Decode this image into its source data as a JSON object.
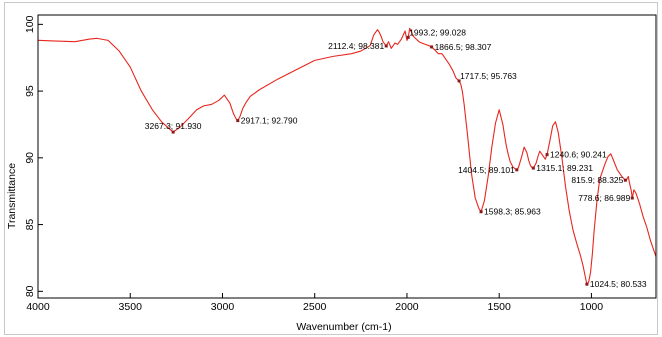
{
  "chart_data": {
    "type": "line",
    "title": "",
    "xlabel": "Wavenumber (cm-1)",
    "ylabel": "Transmittance",
    "xlim": [
      4000,
      650
    ],
    "ylim": [
      79.5,
      100.7
    ],
    "x_reversed": true,
    "xticks": [
      4000,
      3500,
      3000,
      2500,
      2000,
      1500,
      1000
    ],
    "yticks": [
      80,
      85,
      90,
      95,
      100
    ],
    "grid": false,
    "legend": "none",
    "line_color": "#e8261e",
    "marker_color": "#8a1a1a",
    "series": [
      {
        "x": [
          4000,
          3900,
          3800,
          3720,
          3680,
          3620,
          3560,
          3500,
          3440,
          3380,
          3330,
          3290,
          3267.3,
          3230,
          3180,
          3140,
          3100,
          3060,
          3020,
          2990,
          2960,
          2940,
          2925,
          2917.1,
          2905,
          2890,
          2870,
          2850,
          2800,
          2700,
          2600,
          2500,
          2400,
          2300,
          2250,
          2200,
          2180,
          2160,
          2150,
          2140,
          2130,
          2112.4,
          2100,
          2085,
          2065,
          2050,
          2030,
          2010,
          2000,
          1993.2,
          1985,
          1975,
          1965,
          1950,
          1935,
          1920,
          1900,
          1880,
          1866.5,
          1850,
          1830,
          1810,
          1790,
          1770,
          1750,
          1735,
          1725,
          1717.5,
          1708,
          1700,
          1690,
          1670,
          1650,
          1630,
          1610,
          1598.3,
          1580,
          1560,
          1540,
          1520,
          1500,
          1480,
          1470,
          1460,
          1450,
          1440,
          1425,
          1410,
          1404.5,
          1395,
          1380,
          1365,
          1350,
          1340,
          1330,
          1320,
          1315.1,
          1300,
          1290,
          1280,
          1265,
          1250,
          1240.6,
          1225,
          1210,
          1195,
          1180,
          1160,
          1140,
          1120,
          1100,
          1080,
          1060,
          1045,
          1035,
          1024.5,
          1015,
          1005,
          995,
          985,
          970,
          955,
          940,
          925,
          910,
          895,
          880,
          860,
          845,
          835,
          825,
          815.9,
          808,
          800,
          795,
          785,
          778.6,
          770,
          760,
          740,
          720,
          700,
          680,
          660,
          650
        ],
        "y": [
          98.8,
          98.75,
          98.7,
          98.9,
          98.95,
          98.8,
          98.0,
          96.8,
          95.0,
          93.6,
          92.7,
          92.2,
          91.93,
          92.3,
          93.0,
          93.6,
          93.9,
          94.0,
          94.3,
          94.7,
          94.1,
          93.3,
          92.9,
          92.79,
          93.1,
          93.7,
          94.2,
          94.6,
          95.1,
          95.9,
          96.6,
          97.3,
          97.6,
          97.8,
          98.0,
          98.4,
          99.2,
          99.6,
          99.4,
          99.1,
          98.7,
          98.381,
          98.7,
          98.2,
          98.6,
          98.5,
          98.9,
          99.5,
          98.8,
          99.028,
          99.7,
          99.4,
          99.1,
          98.9,
          98.7,
          98.6,
          98.5,
          98.4,
          98.307,
          98.1,
          97.8,
          97.8,
          97.4,
          97.0,
          96.5,
          96.0,
          95.85,
          95.763,
          95.5,
          95.0,
          94.0,
          91.5,
          88.8,
          87.0,
          86.2,
          85.963,
          86.8,
          88.6,
          90.8,
          92.6,
          93.6,
          92.5,
          91.6,
          90.8,
          90.2,
          89.7,
          89.3,
          89.15,
          89.101,
          89.3,
          90.0,
          90.8,
          90.4,
          89.8,
          89.4,
          89.25,
          89.231,
          89.6,
          90.1,
          90.5,
          90.2,
          89.9,
          90.241,
          91.3,
          92.4,
          92.7,
          91.9,
          90.0,
          87.8,
          86.0,
          84.6,
          83.6,
          82.7,
          81.9,
          81.2,
          80.533,
          80.7,
          81.4,
          82.8,
          84.6,
          86.8,
          88.4,
          89.0,
          89.6,
          90.1,
          90.3,
          89.8,
          89.1,
          88.8,
          88.6,
          88.45,
          88.325,
          88.4,
          88.6,
          88.2,
          87.6,
          86.989,
          87.6,
          87.4,
          86.6,
          85.6,
          84.8,
          83.8,
          83.0,
          82.6
        ]
      }
    ],
    "annotations": [
      {
        "x": 3267.3,
        "y": 91.93,
        "text": "3267.3; 91.930"
      },
      {
        "x": 2917.1,
        "y": 92.79,
        "text": "2917.1; 92.790"
      },
      {
        "x": 2112.4,
        "y": 98.381,
        "text": "2112.4; 98.381"
      },
      {
        "x": 1993.2,
        "y": 99.028,
        "text": "1993.2; 99.028"
      },
      {
        "x": 1866.5,
        "y": 98.307,
        "text": "1866.5; 98.307"
      },
      {
        "x": 1717.5,
        "y": 95.763,
        "text": "1717.5; 95.763"
      },
      {
        "x": 1404.5,
        "y": 89.101,
        "text": "1404.5; 89.101"
      },
      {
        "x": 1598.3,
        "y": 85.963,
        "text": "1598.3; 85.963"
      },
      {
        "x": 1315.1,
        "y": 89.231,
        "text": "1315.1; 89.231"
      },
      {
        "x": 1240.6,
        "y": 90.241,
        "text": "1240.6; 90.241"
      },
      {
        "x": 815.9,
        "y": 88.325,
        "text": "815.9; 88.325"
      },
      {
        "x": 778.6,
        "y": 86.989,
        "text": "778.6; 86.989"
      },
      {
        "x": 1024.5,
        "y": 80.533,
        "text": "1024.5; 80.533"
      }
    ]
  }
}
